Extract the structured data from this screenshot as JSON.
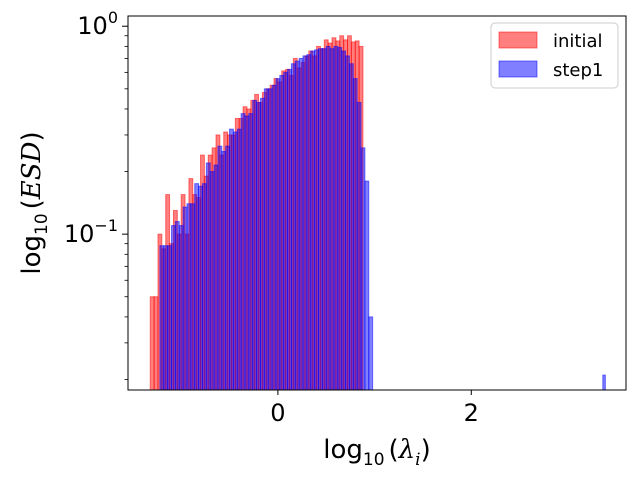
{
  "chart_data": {
    "type": "histogram",
    "title": "",
    "xlabel": {
      "base": "log",
      "sub": "10",
      "open": "(",
      "var": "λ",
      "var_sub": "i",
      "close": ")"
    },
    "ylabel": {
      "base": "log",
      "sub": "10",
      "open": "(",
      "var": "ESD",
      "close": ")"
    },
    "xlim": [
      -1.55,
      3.6
    ],
    "yscale": "log",
    "ylim": [
      0.0178,
      1.12
    ],
    "xticks": [
      {
        "value": 0,
        "label": "0"
      },
      {
        "value": 2,
        "label": "2"
      }
    ],
    "yticks": [
      {
        "value": 1,
        "base": "10",
        "exp": "0"
      },
      {
        "value": 0.1,
        "base": "10",
        "exp": "−1"
      }
    ],
    "legend": {
      "position": "top-right",
      "entries": [
        "initial",
        "step1"
      ]
    },
    "series": [
      {
        "name": "initial",
        "color": "#ff0000",
        "alpha": 0.5,
        "bin_width": 0.04,
        "x_start": -1.32,
        "values": [
          0.05,
          0.05,
          0.1,
          0.085,
          0.155,
          0.09,
          0.13,
          0.1,
          0.155,
          0.1,
          0.185,
          0.155,
          0.15,
          0.24,
          0.19,
          0.24,
          0.26,
          0.3,
          0.24,
          0.31,
          0.3,
          0.3,
          0.36,
          0.36,
          0.41,
          0.4,
          0.44,
          0.47,
          0.43,
          0.48,
          0.5,
          0.52,
          0.56,
          0.54,
          0.61,
          0.62,
          0.58,
          0.7,
          0.63,
          0.67,
          0.72,
          0.76,
          0.72,
          0.8,
          0.78,
          0.86,
          0.83,
          0.88,
          0.85,
          0.9,
          0.86,
          0.9,
          0.84,
          0.85,
          0.8
        ]
      },
      {
        "name": "step1",
        "color": "#0000ff",
        "alpha": 0.5,
        "bin_width": 0.04,
        "x_start": -1.22,
        "values": [
          0.088,
          0.088,
          0.088,
          0.11,
          0.115,
          0.11,
          0.135,
          0.14,
          0.14,
          0.175,
          0.17,
          0.175,
          0.22,
          0.2,
          0.215,
          0.265,
          0.25,
          0.265,
          0.32,
          0.31,
          0.32,
          0.38,
          0.37,
          0.38,
          0.44,
          0.43,
          0.45,
          0.5,
          0.5,
          0.52,
          0.56,
          0.58,
          0.6,
          0.62,
          0.66,
          0.68,
          0.7,
          0.72,
          0.73,
          0.76,
          0.77,
          0.78,
          0.78,
          0.8,
          0.78,
          0.8,
          0.79,
          0.76,
          0.72,
          0.66,
          0.56,
          0.43,
          0.26,
          0.18,
          0.04
        ],
        "outlier": {
          "x": 3.38,
          "value": 0.021
        }
      }
    ]
  }
}
